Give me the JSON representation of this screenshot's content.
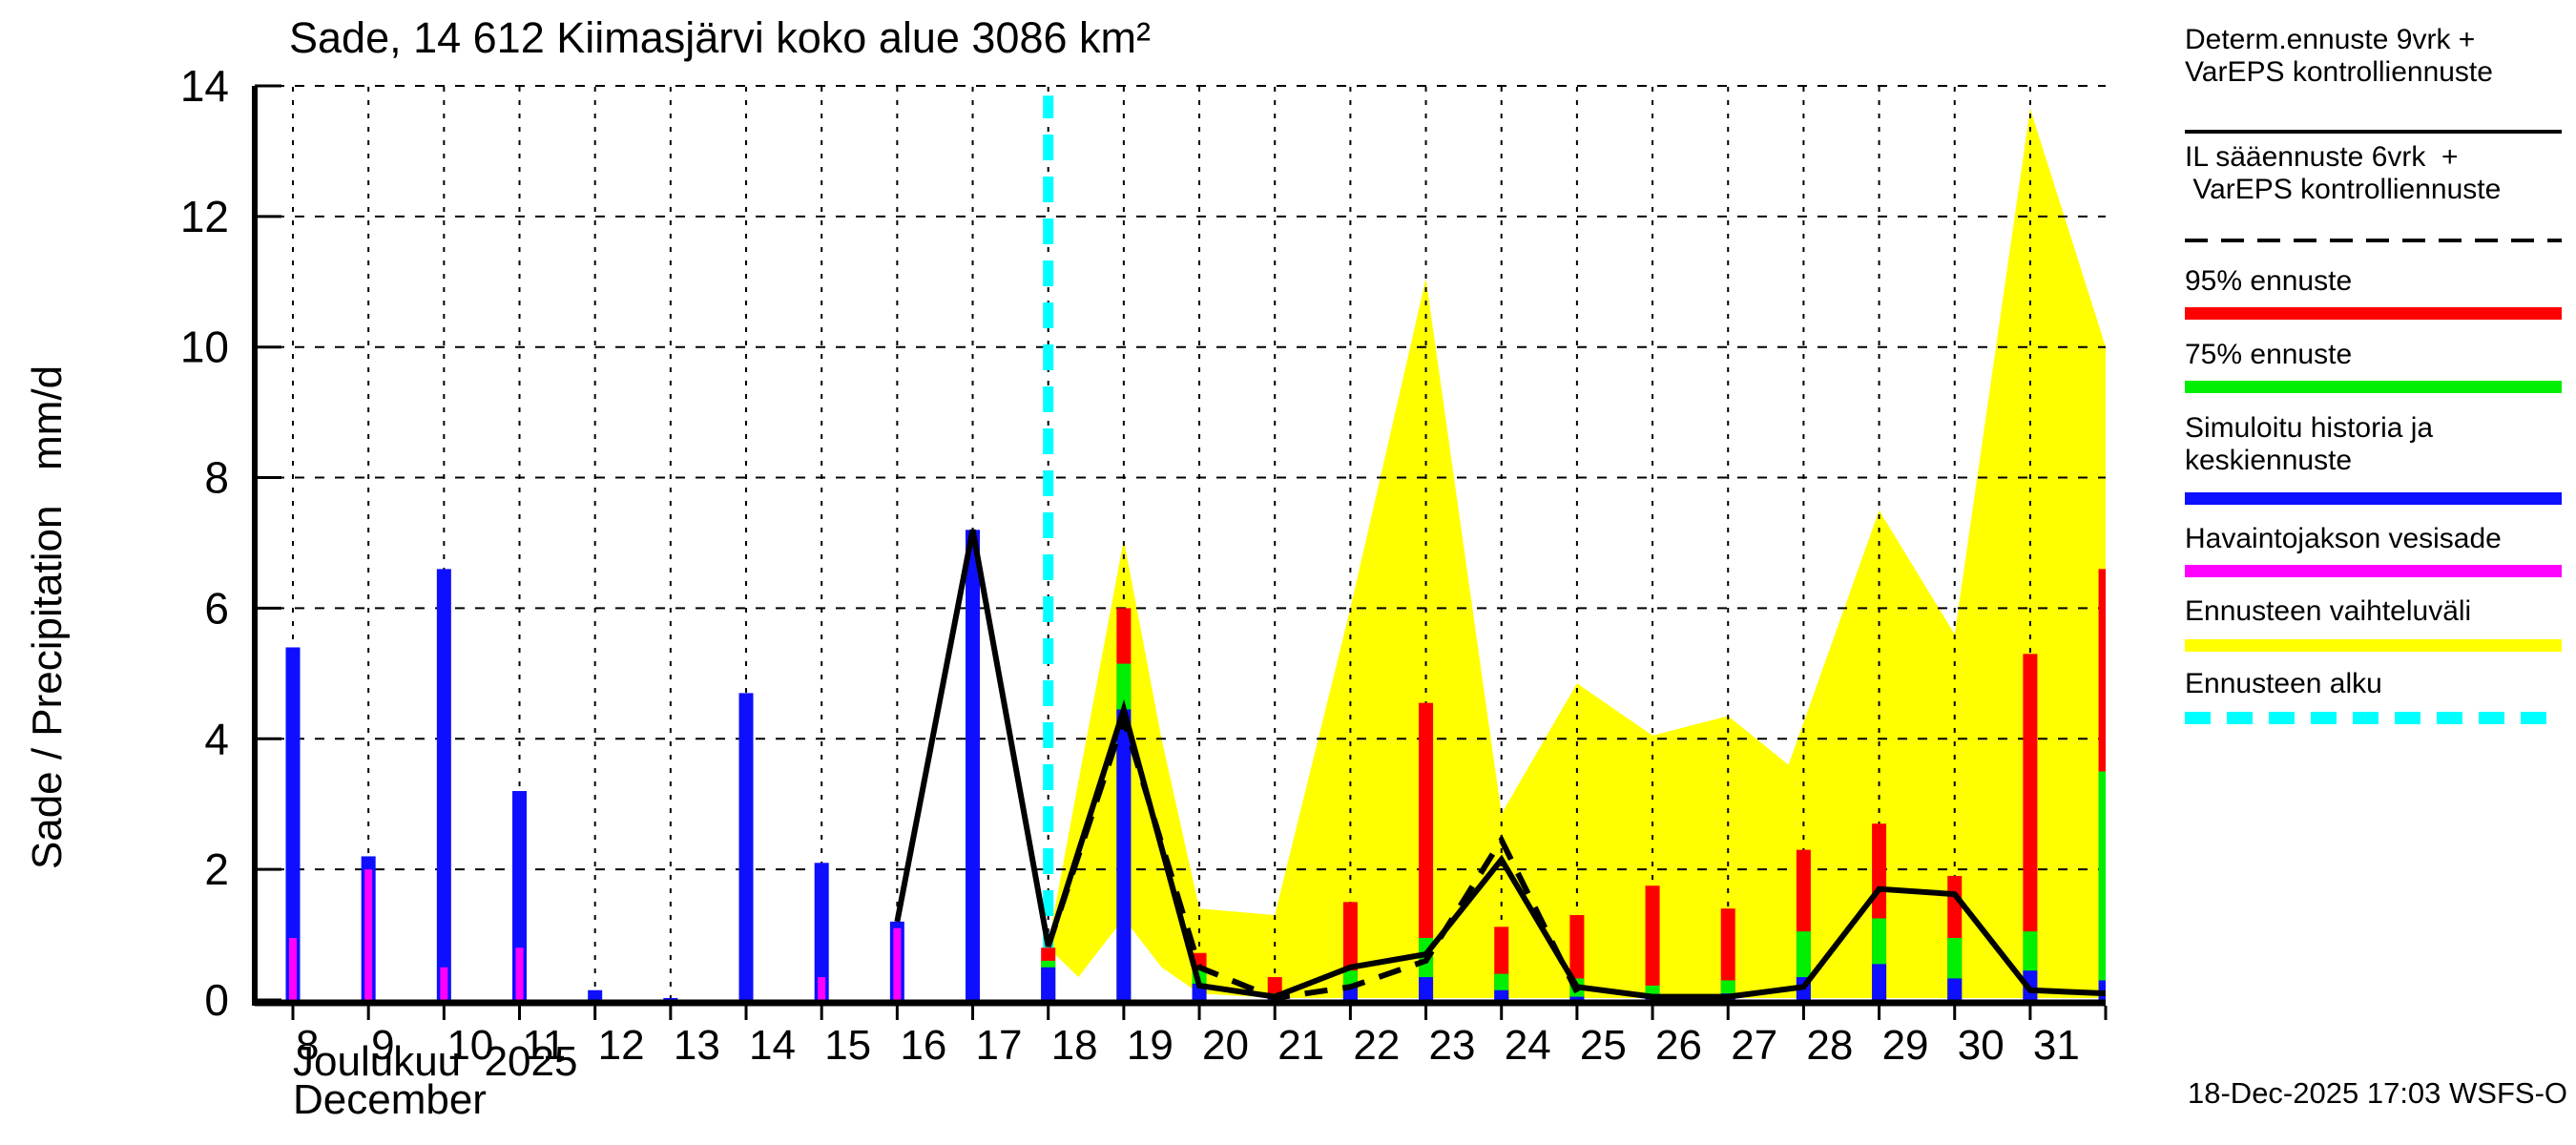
{
  "title": "Sade, 14 612 Kiimasjärvi koko alue 3086 km²",
  "y_axis_label": "Sade / Precipitation   mm/d",
  "x_axis": {
    "month_line1": "Joulukuu  2025",
    "month_line2": "December"
  },
  "footer": {
    "timestamp": "18-Dec-2025 17:03 WSFS-O"
  },
  "colors": {
    "history_mean": "#0f0fff",
    "observed_precip": "#ff00ff",
    "p95": "#ff0000",
    "p75": "#00ef00",
    "band": "#ffff00",
    "forecast_start": "#00ffff",
    "lines": "#000000",
    "background": "#ffffff"
  },
  "legend": {
    "items": [
      {
        "line1": "Determ.ennuste 9vrk +",
        "line2": "VarEPS kontrolliennuste",
        "style": "solid-black"
      },
      {
        "line1": "IL sääennuste 6vrk  +",
        "line2": " VarEPS kontrolliennuste",
        "style": "dashed-black"
      },
      {
        "line1": "95% ennuste",
        "line2": "",
        "style": "red"
      },
      {
        "line1": "75% ennuste",
        "line2": "",
        "style": "green"
      },
      {
        "line1": "Simuloitu historia ja",
        "line2": "keskiennuste",
        "style": "blue"
      },
      {
        "line1": "Havaintojakson vesisade",
        "line2": "",
        "style": "magenta"
      },
      {
        "line1": "Ennusteen vaihteluväli",
        "line2": "",
        "style": "yellow"
      },
      {
        "line1": "Ennusteen alku",
        "line2": "",
        "style": "cyan-dashed"
      }
    ]
  },
  "chart_data": {
    "type": "bar",
    "title": "Sade, 14 612 Kiimasjärvi koko alue 3086 km²",
    "ylabel": "Sade / Precipitation mm/d",
    "xlabel": "Joulukuu 2025 December",
    "ylim": [
      0,
      14
    ],
    "xlim": [
      7.5,
      32
    ],
    "y_ticks": [
      0,
      2,
      4,
      6,
      8,
      10,
      12,
      14
    ],
    "x_tick_labels": [
      "8",
      "9",
      "10",
      "11",
      "12",
      "13",
      "14",
      "15",
      "16",
      "17",
      "18",
      "19",
      "20",
      "21",
      "22",
      "23",
      "24",
      "25",
      "26",
      "27",
      "28",
      "29",
      "30",
      "31"
    ],
    "forecast_start_day": 18,
    "grid": true,
    "legend_position": "outside-right",
    "observed": {
      "days": [
        8,
        9,
        10,
        11,
        12,
        13,
        14,
        15,
        16,
        17
      ],
      "simulated_blue": [
        5.4,
        2.2,
        6.6,
        3.2,
        0.15,
        0.03,
        4.7,
        2.1,
        1.2,
        7.2
      ],
      "observed_magenta": [
        0.95,
        2.0,
        0.5,
        0.8,
        0,
        0,
        0,
        0.35,
        1.1,
        0
      ]
    },
    "forecast": {
      "days": [
        18,
        19,
        20,
        21,
        22,
        23,
        24,
        25,
        26,
        27,
        28,
        29,
        30,
        31,
        32
      ],
      "mean": [
        0.5,
        4.45,
        0.25,
        0.05,
        0.2,
        0.35,
        0.15,
        0.05,
        0.07,
        0.1,
        0.35,
        0.55,
        0.33,
        0.45,
        0.3
      ],
      "p75": [
        0.6,
        5.15,
        0.45,
        0.1,
        0.45,
        0.95,
        0.4,
        0.33,
        0.22,
        0.3,
        1.05,
        1.25,
        0.95,
        1.05,
        3.5
      ],
      "p95": [
        0.8,
        6.0,
        0.72,
        0.35,
        1.5,
        4.55,
        1.12,
        1.3,
        1.75,
        1.4,
        2.3,
        2.7,
        1.9,
        5.3,
        6.6
      ]
    },
    "band": {
      "days": [
        18,
        18.4,
        19,
        19.5,
        20,
        21,
        22,
        23,
        24,
        25,
        26,
        27,
        27.8,
        29,
        30,
        31,
        32
      ],
      "upper": [
        0.85,
        3.35,
        7.05,
        4.0,
        1.4,
        1.3,
        6.0,
        11.05,
        2.85,
        4.85,
        4.05,
        4.35,
        3.6,
        7.5,
        5.6,
        13.65,
        10.0
      ],
      "lower": [
        0.8,
        0.35,
        1.25,
        0.5,
        0.1,
        0.03,
        0.03,
        0.03,
        0.03,
        0.03,
        0.03,
        0.03,
        0.03,
        0.03,
        0.03,
        0.03,
        0.03
      ]
    },
    "determ_line": {
      "days": [
        16,
        17,
        18,
        19,
        20,
        21,
        22,
        23,
        24,
        25,
        26,
        27,
        28,
        29,
        30,
        31,
        32
      ],
      "values": [
        1.2,
        7.2,
        0.82,
        4.45,
        0.22,
        0.05,
        0.5,
        0.7,
        2.15,
        0.2,
        0.05,
        0.05,
        0.2,
        1.7,
        1.62,
        0.15,
        0.1
      ]
    },
    "il_line": {
      "days": [
        18,
        19,
        20,
        21,
        22,
        23,
        24,
        25
      ],
      "values": [
        0.82,
        4.3,
        0.5,
        0.03,
        0.2,
        0.6,
        2.45,
        0.12
      ]
    }
  }
}
